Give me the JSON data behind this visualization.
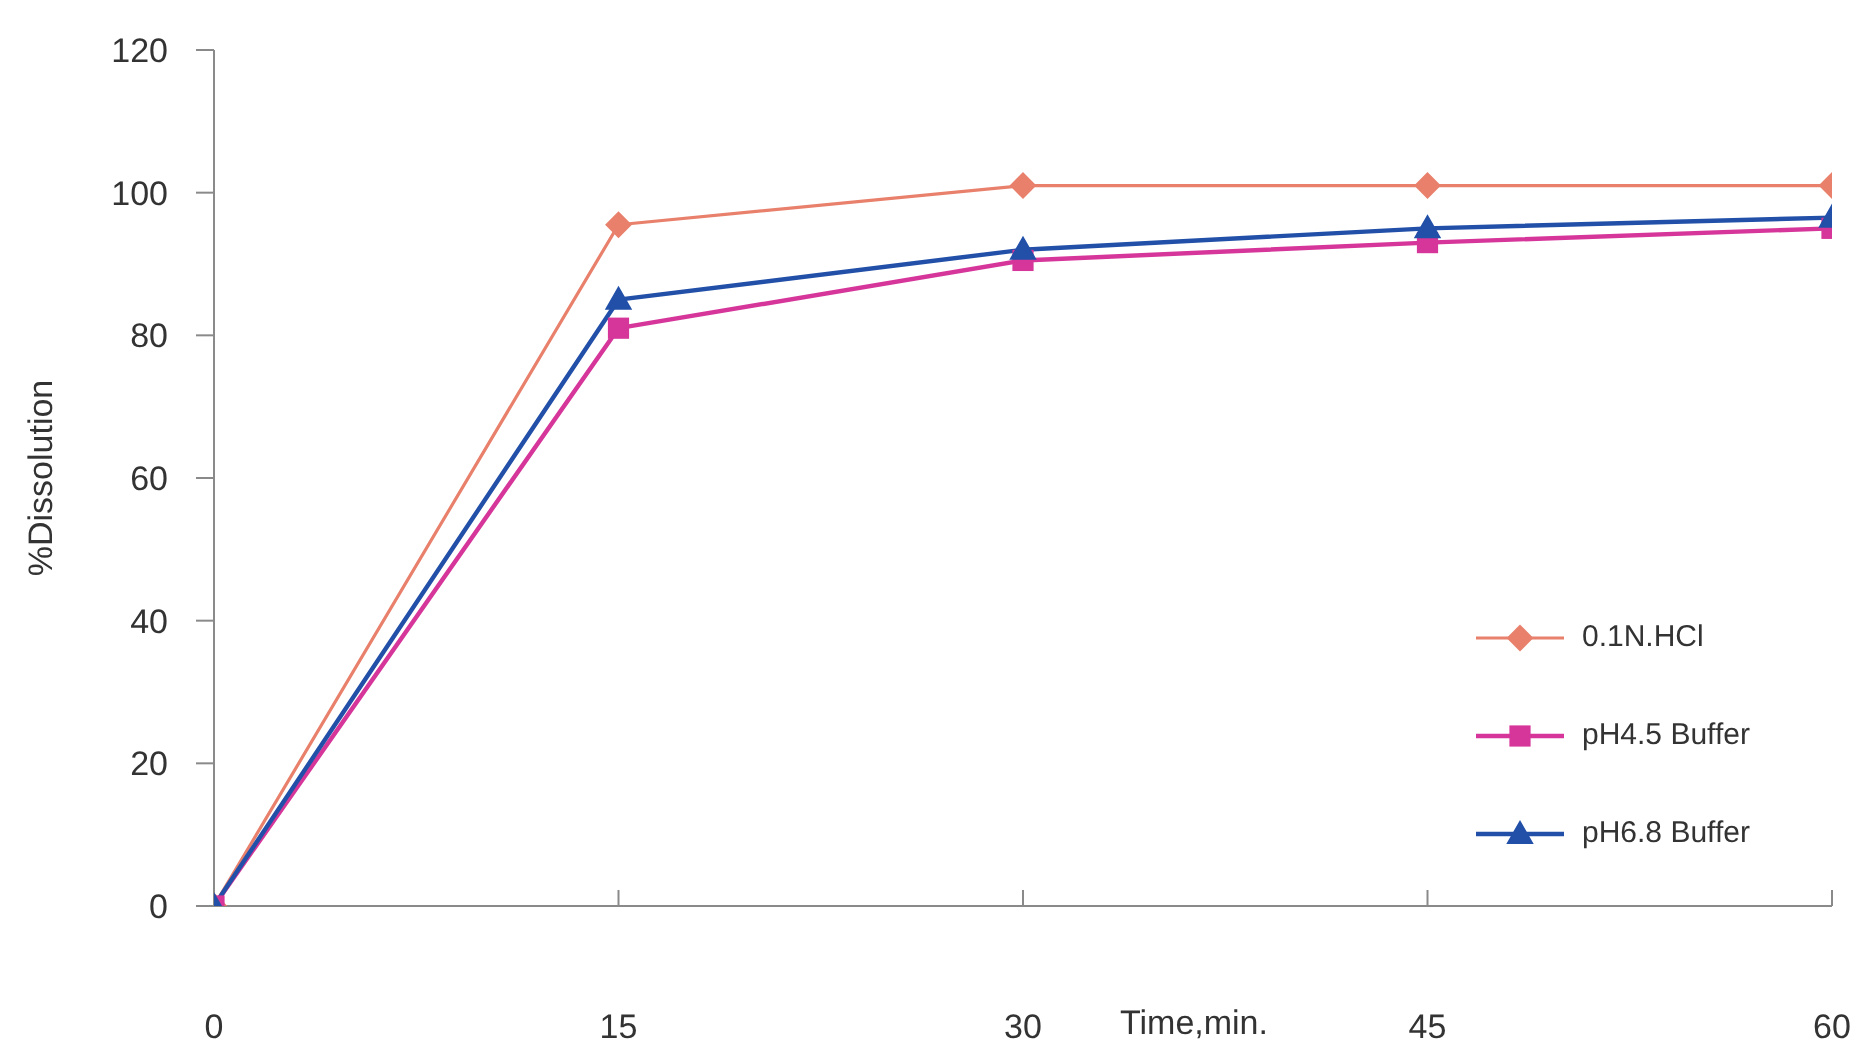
{
  "chart_data": {
    "type": "line",
    "xlabel": "Time,min.",
    "ylabel": "%Dissolution",
    "x": [
      0,
      15,
      30,
      45,
      60
    ],
    "xlim": [
      0,
      60
    ],
    "xticks": [
      0,
      15,
      30,
      45,
      60
    ],
    "ylim": [
      0,
      120
    ],
    "yticks": [
      0,
      20,
      40,
      60,
      80,
      100,
      120
    ],
    "legend": "right",
    "series": [
      {
        "name": "0.1N.HCl",
        "color": "#e8806c",
        "marker": "diamond",
        "values": [
          0,
          95.5,
          101,
          101,
          101
        ]
      },
      {
        "name": "pH4.5 Buffer",
        "color": "#d6369a",
        "marker": "square",
        "values": [
          0,
          81,
          90.5,
          93,
          95
        ]
      },
      {
        "name": "pH6.8 Buffer",
        "color": "#2250a8",
        "marker": "triangle",
        "values": [
          0,
          85,
          92,
          95,
          96.5
        ]
      }
    ]
  }
}
